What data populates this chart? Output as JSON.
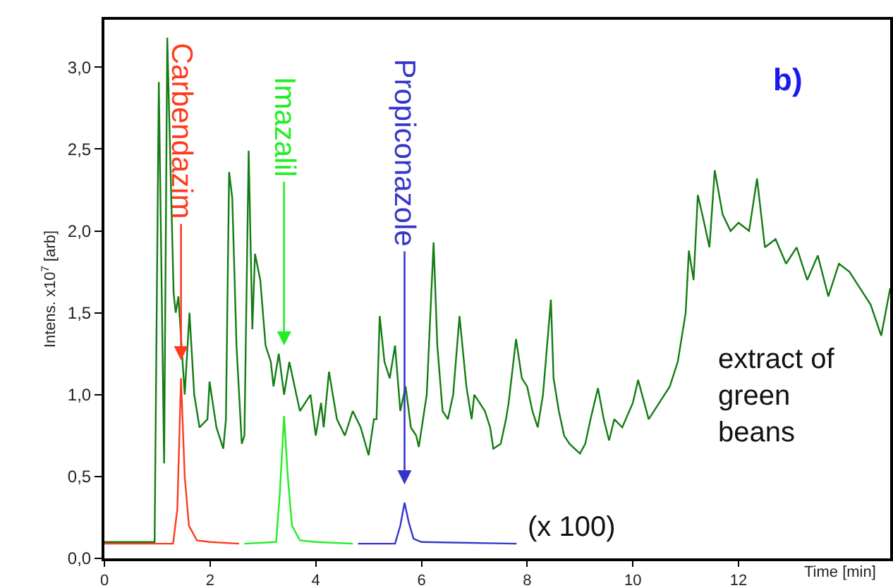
{
  "chart_data": {
    "type": "line",
    "xlabel": "Time [min]",
    "ylabel": "Intens. x10$^{7}$ [arb]",
    "xlim": [
      0,
      14.87
    ],
    "ylim": [
      0,
      3.29
    ],
    "xticks": [
      0,
      2,
      4,
      6,
      8,
      10,
      12
    ],
    "yticks": [
      {
        "value": 0,
        "label": "0,0"
      },
      {
        "value": 0.5,
        "label": "0,5"
      },
      {
        "value": 1,
        "label": "1,0"
      },
      {
        "value": 1.5,
        "label": "1,5"
      },
      {
        "value": 2,
        "label": "2,0"
      },
      {
        "value": 2.5,
        "label": "2,5"
      },
      {
        "value": 3,
        "label": "3,0"
      }
    ],
    "grid": false,
    "marker": "none",
    "line_style": "solid",
    "annotations": [
      "b)",
      "extract of green beans",
      "(x 100)",
      {
        "text": "Carbendazim",
        "x": 1.45,
        "y": 1.21
      },
      "Imazalil",
      "Propiconazole"
    ],
    "series": [
      {
        "color": "#137d13",
        "x": [
          0,
          0.95,
          1.03,
          1.13,
          1.19,
          1.31,
          1.35,
          1.4,
          1.52,
          1.61,
          1.7,
          1.8,
          1.95,
          1.99,
          2.12,
          2.25,
          2.3,
          2.36,
          2.42,
          2.5,
          2.6,
          2.65,
          2.73,
          2.8,
          2.85,
          2.95,
          3.05,
          3.15,
          3.2,
          3.3,
          3.4,
          3.5,
          3.6,
          3.7,
          3.8,
          3.9,
          4.0,
          4.1,
          4.15,
          4.25,
          4.4,
          4.55,
          4.7,
          4.85,
          5.0,
          5.1,
          5.15,
          5.21,
          5.3,
          5.4,
          5.5,
          5.6,
          5.7,
          5.8,
          5.9,
          5.95,
          6.1,
          6.23,
          6.3,
          6.4,
          6.5,
          6.6,
          6.72,
          6.85,
          6.95,
          7.0,
          7.1,
          7.2,
          7.3,
          7.36,
          7.5,
          7.6,
          7.65,
          7.79,
          7.9,
          8.0,
          8.1,
          8.2,
          8.3,
          8.45,
          8.5,
          8.6,
          8.7,
          8.8,
          9.0,
          9.1,
          9.2,
          9.34,
          9.45,
          9.55,
          9.65,
          9.8,
          10.0,
          10.1,
          10.3,
          10.5,
          10.7,
          10.85,
          11.0,
          11.06,
          11.15,
          11.23,
          11.35,
          11.45,
          11.55,
          11.7,
          11.85,
          12.0,
          12.2,
          12.35,
          12.5,
          12.7,
          12.9,
          13.1,
          13.3,
          13.5,
          13.7,
          13.9,
          14.1,
          14.3,
          14.5,
          14.7,
          14.87
        ],
        "values": [
          0.1,
          0.1,
          2.91,
          0.58,
          3.18,
          1.62,
          1.5,
          1.6,
          1.0,
          1.5,
          1.0,
          0.8,
          0.85,
          1.08,
          0.8,
          0.67,
          0.85,
          2.36,
          2.2,
          1.3,
          0.7,
          0.75,
          2.49,
          1.4,
          1.86,
          1.7,
          1.3,
          1.2,
          1.05,
          1.25,
          1.0,
          1.2,
          1.05,
          0.9,
          0.95,
          1.0,
          0.75,
          0.95,
          0.8,
          1.14,
          0.85,
          0.75,
          0.9,
          0.8,
          0.63,
          0.85,
          0.85,
          1.48,
          1.2,
          1.1,
          1.3,
          0.9,
          1.05,
          0.8,
          0.75,
          0.68,
          1.0,
          1.93,
          1.3,
          0.9,
          0.85,
          1.0,
          1.48,
          1.05,
          0.85,
          1.0,
          0.95,
          0.9,
          0.8,
          0.67,
          0.7,
          0.85,
          0.95,
          1.34,
          1.1,
          1.05,
          0.9,
          0.8,
          1.0,
          1.58,
          1.1,
          0.9,
          0.75,
          0.7,
          0.64,
          0.7,
          0.85,
          1.04,
          0.85,
          0.72,
          0.85,
          0.8,
          0.95,
          1.09,
          0.85,
          0.95,
          1.05,
          1.2,
          1.5,
          1.88,
          1.7,
          2.22,
          2.05,
          1.9,
          2.37,
          2.1,
          2.0,
          2.05,
          2.0,
          2.32,
          1.9,
          1.95,
          1.8,
          1.9,
          1.7,
          1.85,
          1.6,
          1.8,
          1.75,
          1.65,
          1.55,
          1.36,
          1.65
        ]
      },
      {
        "color": "#ff3b1f",
        "x": [
          0,
          1.3,
          1.38,
          1.45,
          1.52,
          1.6,
          1.75,
          2.0,
          2.55
        ],
        "values": [
          0.09,
          0.09,
          0.3,
          1.1,
          0.5,
          0.2,
          0.11,
          0.1,
          0.09
        ]
      },
      {
        "color": "#22ee22",
        "x": [
          2.65,
          3.25,
          3.32,
          3.4,
          3.47,
          3.55,
          3.7,
          4.0,
          4.7
        ],
        "values": [
          0.09,
          0.1,
          0.4,
          0.87,
          0.5,
          0.2,
          0.11,
          0.1,
          0.09
        ]
      },
      {
        "color": "#3535cc",
        "x": [
          4.8,
          5.5,
          5.6,
          5.68,
          5.76,
          5.85,
          6.0,
          7.8
        ],
        "values": [
          0.09,
          0.09,
          0.2,
          0.34,
          0.22,
          0.12,
          0.1,
          0.09
        ]
      }
    ]
  }
}
